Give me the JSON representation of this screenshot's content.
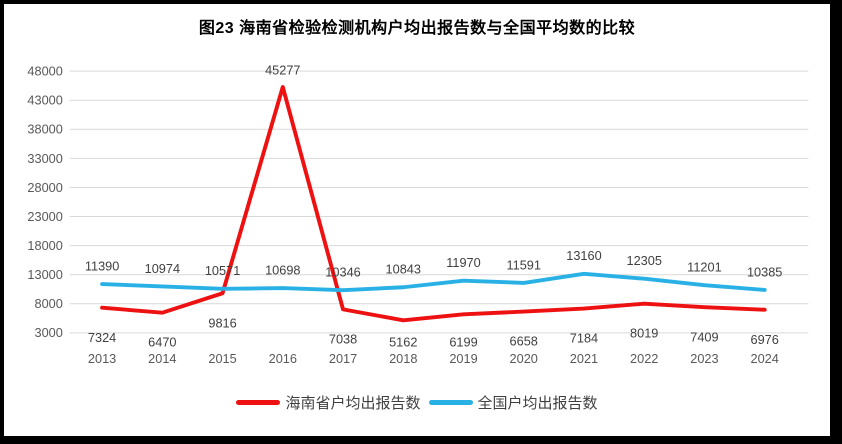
{
  "chart_data": {
    "type": "line",
    "title": "图23  海南省检验检测机构户均出报告数与全国平均数的比较",
    "categories": [
      "2013",
      "2014",
      "2015",
      "2016",
      "2017",
      "2018",
      "2019",
      "2020",
      "2021",
      "2022",
      "2023",
      "2024"
    ],
    "series": [
      {
        "name": "海南省户均出报告数",
        "color": "#ee1111",
        "label_placement": "below",
        "values": [
          7324,
          6470,
          9816,
          45277,
          7038,
          5162,
          6199,
          6658,
          7184,
          8019,
          7409,
          6976
        ]
      },
      {
        "name": "全国户均出报告数",
        "color": "#29b1e6",
        "label_placement": "above",
        "values": [
          11390,
          10974,
          10571,
          10698,
          10346,
          10843,
          11970,
          11591,
          13160,
          12305,
          11201,
          10385
        ]
      }
    ],
    "y_axis": {
      "min": 3000,
      "max": 48000,
      "step": 5000,
      "ticks": [
        "3000",
        "8000",
        "13000",
        "18000",
        "23000",
        "28000",
        "33000",
        "38000",
        "43000",
        "48000"
      ]
    },
    "grid": true,
    "legend_position": "bottom",
    "colors": {
      "grid_line": "#d9d9d9",
      "axis_text": "#595959",
      "data_label": "#404040",
      "frame_border": "#000000",
      "background": "#ffffff"
    }
  }
}
